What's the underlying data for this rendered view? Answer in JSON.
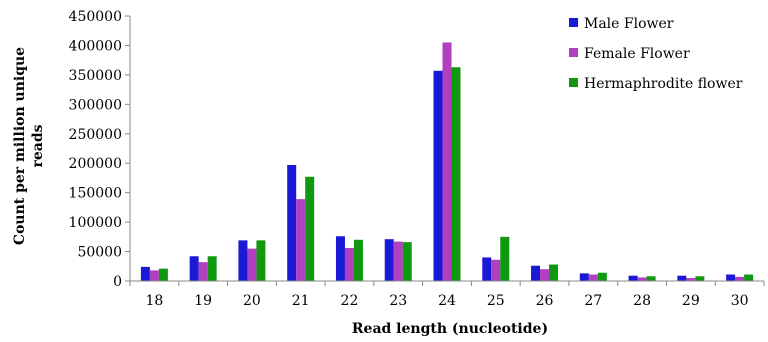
{
  "chart_data": {
    "type": "bar",
    "title": "",
    "xlabel": "Read length (nucleotide)",
    "ylabel": "Count per million unique reads",
    "categories": [
      "18",
      "19",
      "20",
      "21",
      "22",
      "23",
      "24",
      "25",
      "26",
      "27",
      "28",
      "29",
      "30"
    ],
    "ylim": [
      0,
      450000
    ],
    "yticks": [
      0,
      50000,
      100000,
      150000,
      200000,
      250000,
      300000,
      350000,
      400000,
      450000
    ],
    "ytick_labels": [
      "0",
      "50000",
      "100000",
      "150000",
      "200000",
      "250000",
      "300000",
      "350000",
      "400000",
      "450000"
    ],
    "grid": false,
    "legend_position": "top-right",
    "series": [
      {
        "name": "Male Flower",
        "color": "#1a1ad6",
        "values": [
          24000,
          42000,
          69000,
          197000,
          76000,
          71000,
          357000,
          40000,
          26000,
          13000,
          9000,
          9000,
          11000
        ]
      },
      {
        "name": "Female Flower",
        "color": "#b040c0",
        "values": [
          18000,
          32000,
          55000,
          139000,
          56000,
          67000,
          405000,
          36000,
          20000,
          11000,
          6000,
          5000,
          7000
        ]
      },
      {
        "name": "Hermaphrodite flower",
        "color": "#109810",
        "values": [
          21000,
          42000,
          69000,
          177000,
          70000,
          66000,
          363000,
          75000,
          28000,
          14000,
          8000,
          8000,
          11000
        ]
      }
    ]
  }
}
